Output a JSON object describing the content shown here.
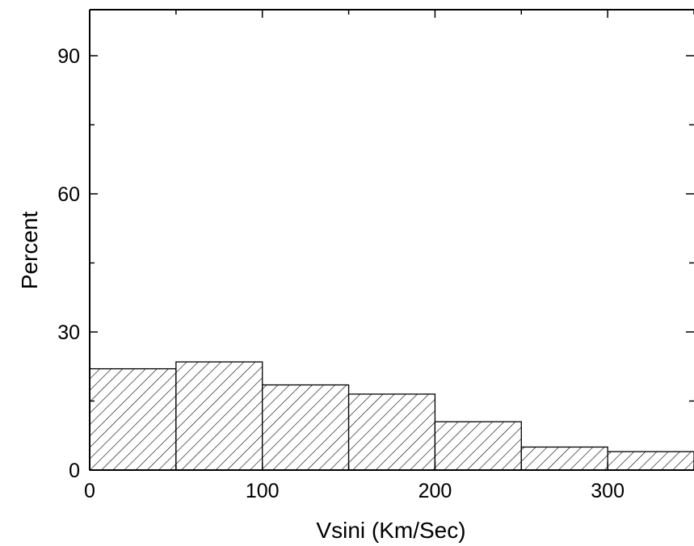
{
  "chart_data": {
    "type": "bar",
    "title": "",
    "xlabel": "Vsini (Km/Sec)",
    "ylabel": "Percent",
    "xlim": [
      0,
      350
    ],
    "ylim": [
      0,
      100
    ],
    "xticks": [
      0,
      100,
      200,
      300
    ],
    "yticks": [
      0,
      30,
      60,
      90
    ],
    "bin_edges": [
      0,
      50,
      100,
      150,
      200,
      250,
      300,
      350
    ],
    "values": [
      22,
      23.5,
      18.5,
      16.5,
      10.5,
      5,
      4
    ],
    "grid": false,
    "legend": "none",
    "fill_pattern": "diagonal-hatch",
    "colors": {
      "stroke": "#000000",
      "background": "#ffffff"
    }
  }
}
